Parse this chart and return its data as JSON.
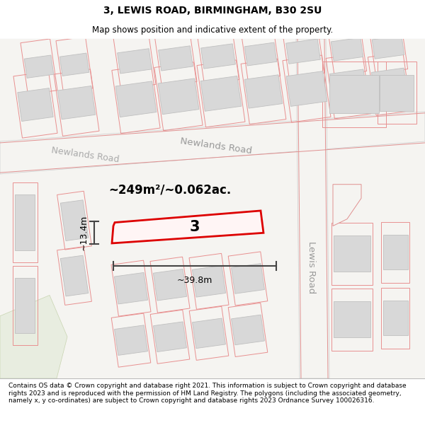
{
  "title": "3, LEWIS ROAD, BIRMINGHAM, B30 2SU",
  "subtitle": "Map shows position and indicative extent of the property.",
  "footer": "Contains OS data © Crown copyright and database right 2021. This information is subject to Crown copyright and database rights 2023 and is reproduced with the permission of HM Land Registry. The polygons (including the associated geometry, namely x, y co-ordinates) are subject to Crown copyright and database rights 2023 Ordnance Survey 100026316.",
  "property_label": "3",
  "area_label": "~249m²/~0.062ac.",
  "width_label": "~39.8m",
  "height_label": "~13.4m",
  "newlands_road_label": "Newlands Road",
  "lewis_road_label": "Lewis Road",
  "newlands_road_label2": "Newlands Road",
  "map_bg": "#f5f4f1",
  "road_fill": "#f5f4f1",
  "building_fill": "#d8d8d8",
  "building_stroke": "#c0c0c0",
  "lot_stroke": "#e89090",
  "red_outline": "#dd0000",
  "prop_fill": "#fff5f5",
  "green_fill": "#e8ede0",
  "title_fontsize": 10,
  "subtitle_fontsize": 8.5,
  "footer_fontsize": 6.5
}
